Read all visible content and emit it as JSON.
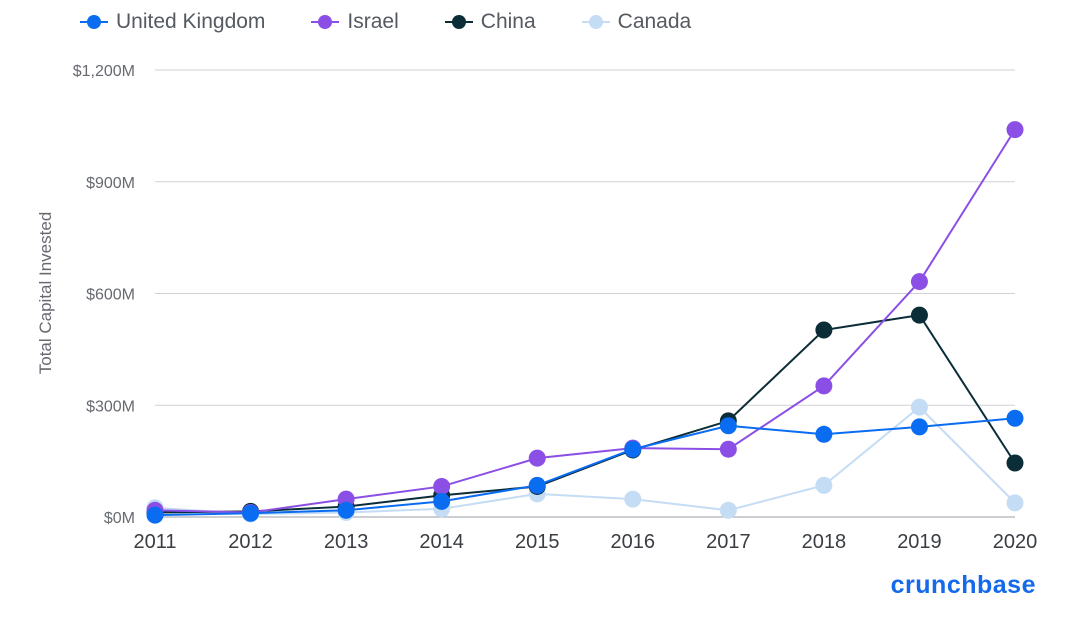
{
  "chart_data": {
    "type": "line",
    "ylabel": "Total Capital Invested",
    "xlabel": "",
    "x": [
      "2011",
      "2012",
      "2013",
      "2014",
      "2015",
      "2016",
      "2017",
      "2018",
      "2019",
      "2020"
    ],
    "ylim": [
      0,
      1200
    ],
    "yticks": [
      0,
      300,
      600,
      900,
      1200
    ],
    "ytick_labels": [
      "$0M",
      "$300M",
      "$600M",
      "$900M",
      "$1,200M"
    ],
    "grid": true,
    "legend_position": "top-left",
    "series": [
      {
        "name": "United Kingdom",
        "color": "#0a6cf0",
        "values": [
          5,
          10,
          18,
          42,
          85,
          182,
          245,
          222,
          242,
          265
        ]
      },
      {
        "name": "Israel",
        "color": "#8b4fe6",
        "values": [
          18,
          12,
          48,
          82,
          158,
          185,
          182,
          352,
          632,
          1040
        ]
      },
      {
        "name": "China",
        "color": "#0b2d38",
        "values": [
          12,
          15,
          28,
          58,
          82,
          180,
          258,
          502,
          542,
          145
        ]
      },
      {
        "name": "Canada",
        "color": "#c5dcf5",
        "values": [
          25,
          8,
          12,
          22,
          62,
          48,
          18,
          85,
          295,
          38
        ]
      }
    ]
  },
  "brand": {
    "text": "crunchbase",
    "color": "#146aeb"
  }
}
